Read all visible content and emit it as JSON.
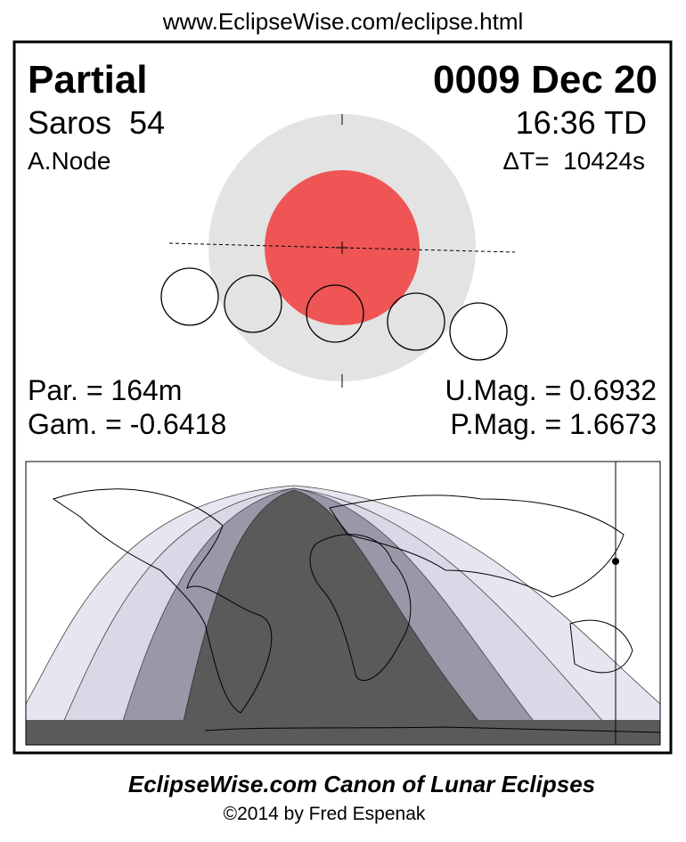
{
  "header": {
    "url": "www.EclipseWise.com/eclipse.html"
  },
  "eclipse": {
    "type": "Partial",
    "date": "0009 Dec 20",
    "saros": "Saros  54",
    "time": "16:36 TD",
    "node": "A.Node",
    "delta_t": "ΔT=  10424s"
  },
  "parameters": {
    "duration": "Par. = 164m",
    "gamma": "Gam. = -0.6418",
    "umbral_magnitude": "U.Mag. = 0.6932",
    "penumbral_magnitude": "P.Mag. = 1.6673"
  },
  "footer": {
    "title": "EclipseWise.com Canon of Lunar Eclipses",
    "copyright": "©2014 by Fred Espenak"
  }
}
